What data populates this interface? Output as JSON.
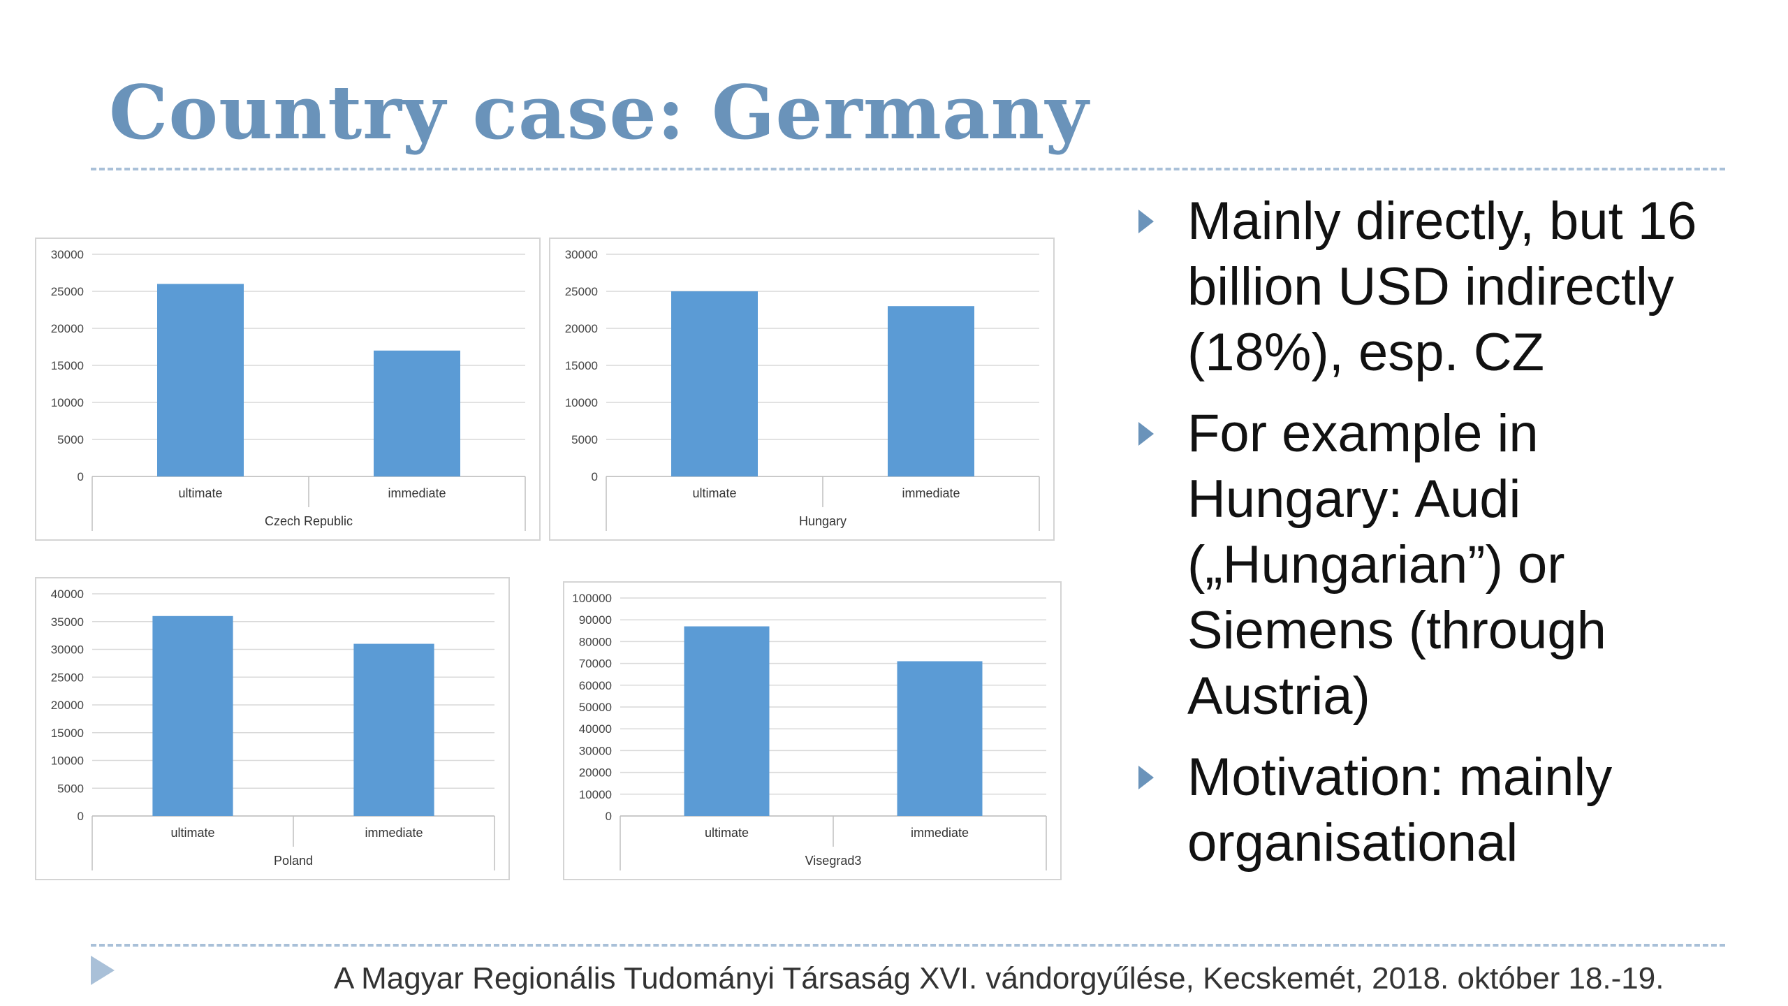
{
  "title": "Country case: Germany",
  "chart_data": [
    {
      "type": "bar",
      "title": "",
      "xlabel": "Czech Republic",
      "ylabel": "",
      "categories": [
        "ultimate",
        "immediate"
      ],
      "values": [
        26000,
        17000
      ],
      "ylim": [
        0,
        30000
      ],
      "yticks": [
        0,
        5000,
        10000,
        15000,
        20000,
        25000,
        30000
      ],
      "grid": true,
      "bar_color": "#5b9bd5"
    },
    {
      "type": "bar",
      "title": "",
      "xlabel": "Hungary",
      "ylabel": "",
      "categories": [
        "ultimate",
        "immediate"
      ],
      "values": [
        25000,
        23000
      ],
      "ylim": [
        0,
        30000
      ],
      "yticks": [
        0,
        5000,
        10000,
        15000,
        20000,
        25000,
        30000
      ],
      "grid": true,
      "bar_color": "#5b9bd5"
    },
    {
      "type": "bar",
      "title": "",
      "xlabel": "Poland",
      "ylabel": "",
      "categories": [
        "ultimate",
        "immediate"
      ],
      "values": [
        36000,
        31000
      ],
      "ylim": [
        0,
        40000
      ],
      "yticks": [
        0,
        5000,
        10000,
        15000,
        20000,
        25000,
        30000,
        35000,
        40000
      ],
      "grid": true,
      "bar_color": "#5b9bd5"
    },
    {
      "type": "bar",
      "title": "",
      "xlabel": "Visegrad3",
      "ylabel": "",
      "categories": [
        "ultimate",
        "immediate"
      ],
      "values": [
        87000,
        71000
      ],
      "ylim": [
        0,
        100000
      ],
      "yticks": [
        0,
        10000,
        20000,
        30000,
        40000,
        50000,
        60000,
        70000,
        80000,
        90000,
        100000
      ],
      "grid": true,
      "bar_color": "#5b9bd5"
    }
  ],
  "bullets": [
    "Mainly directly, but 16 billion USD indirectly (18%), esp. CZ",
    "For example in Hungary:  Audi („Hungarian”) or Siemens (through Austria)",
    "Motivation: mainly organisational"
  ],
  "footer": "A Magyar Regionális Tudományi Társaság XVI. vándorgyűlése, Kecskemét, 2018. október 18.-19.",
  "colors": {
    "accent": "#6a93ba",
    "divider": "#a9c0d8",
    "bar": "#5b9bd5"
  }
}
